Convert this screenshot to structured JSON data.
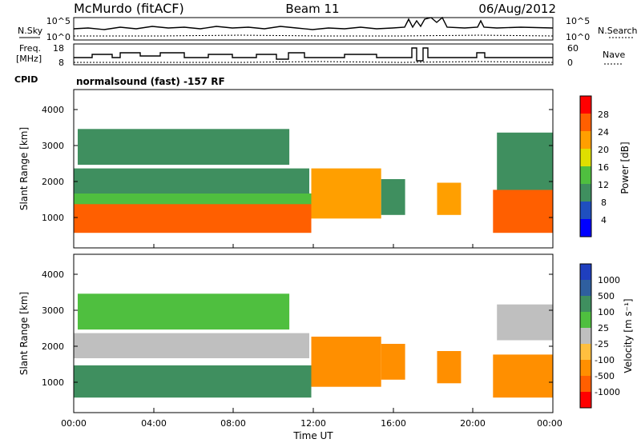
{
  "header": {
    "station": "McMurdo (fitACF)",
    "beam": "Beam 11",
    "date": "06/Aug/2012"
  },
  "top_panels": {
    "nsky_label": "N.Sky",
    "nsearch_label": "N.Search",
    "sky_ticks": [
      "10^5",
      "10^0"
    ],
    "search_ticks": [
      "10^5",
      "10^0"
    ],
    "freq_label_line1": "Freq.",
    "freq_label_line2": "[MHz]",
    "freq_ticks": [
      "18",
      "8"
    ],
    "nave_label": "Nave",
    "nave_ticks": [
      "60",
      "0"
    ],
    "cpid_label": "CPID",
    "cpid_text": "normalsound (fast) -157 RF"
  },
  "xaxis": {
    "title": "Time UT",
    "ticks": [
      "00:00",
      "04:00",
      "08:00",
      "12:00",
      "16:00",
      "20:00",
      "00:00"
    ]
  },
  "power_panel": {
    "ylabel": "Slant Range [km]",
    "yticks": [
      "1000",
      "2000",
      "3000",
      "4000"
    ],
    "colorbar_label": "Power [dB]",
    "colorbar_ticks": [
      "4",
      "8",
      "12",
      "16",
      "20",
      "24",
      "28"
    ],
    "colors": [
      "#0000ff",
      "#1f4fbf",
      "#3f8f5f",
      "#4fbf3f",
      "#dfdf00",
      "#ff9f00",
      "#ff5f00",
      "#ff0000"
    ]
  },
  "velocity_panel": {
    "ylabel": "Slant Range [km]",
    "yticks": [
      "1000",
      "2000",
      "3000",
      "4000"
    ],
    "colorbar_label": "Velocity [m s⁻¹]",
    "colorbar_ticks": [
      "-1000",
      "-500",
      "-100",
      "-25",
      "25",
      "100",
      "500",
      "1000"
    ],
    "colors": [
      "#ff0000",
      "#ff5f00",
      "#ff8f00",
      "#ffbf3f",
      "#bfbfbf",
      "#4fbf3f",
      "#3f8f5f",
      "#2f5f9f",
      "#1f3fbf"
    ]
  },
  "chart_data": [
    {
      "type": "heatmap",
      "title": "Power [dB]",
      "xlabel": "Time UT",
      "ylabel": "Slant Range [km]",
      "xlim_hours": [
        0,
        24
      ],
      "ylim_km": [
        180,
        4600
      ],
      "colorbar_range_db": [
        0,
        32
      ],
      "regions": [
        {
          "t": [
            0.0,
            11.9
          ],
          "r": [
            600,
            1500
          ],
          "value_db": 27
        },
        {
          "t": [
            0.0,
            11.9
          ],
          "r": [
            1400,
            1700
          ],
          "value_db": 14
        },
        {
          "t": [
            0.0,
            11.8
          ],
          "r": [
            1700,
            2400
          ],
          "value_db": 10
        },
        {
          "t": [
            0.2,
            10.8
          ],
          "r": [
            2500,
            3500
          ],
          "value_db": 8
        },
        {
          "t": [
            11.9,
            15.4
          ],
          "r": [
            1000,
            2400
          ],
          "value_db": 20
        },
        {
          "t": [
            15.4,
            16.6
          ],
          "r": [
            1100,
            2100
          ],
          "value_db": 10
        },
        {
          "t": [
            18.2,
            19.4
          ],
          "r": [
            1100,
            2000
          ],
          "value_db": 22
        },
        {
          "t": [
            21.0,
            24.0
          ],
          "r": [
            600,
            1800
          ],
          "value_db": 26
        },
        {
          "t": [
            21.2,
            24.0
          ],
          "r": [
            1800,
            3400
          ],
          "value_db": 9
        }
      ]
    },
    {
      "type": "heatmap",
      "title": "Velocity [m s⁻¹]",
      "xlabel": "Time UT",
      "ylabel": "Slant Range [km]",
      "xlim_hours": [
        0,
        24
      ],
      "ylim_km": [
        180,
        4600
      ],
      "colorbar_range_ms": [
        -1000,
        1000
      ],
      "regions": [
        {
          "t": [
            0.0,
            11.9
          ],
          "r": [
            600,
            1500
          ],
          "value_ms": 150
        },
        {
          "t": [
            0.0,
            11.8
          ],
          "r": [
            1700,
            2400
          ],
          "value_ms": 0
        },
        {
          "t": [
            0.2,
            10.8
          ],
          "r": [
            2500,
            3500
          ],
          "value_ms": 60
        },
        {
          "t": [
            11.9,
            15.4
          ],
          "r": [
            900,
            2300
          ],
          "value_ms": -200
        },
        {
          "t": [
            15.4,
            16.6
          ],
          "r": [
            1100,
            2100
          ],
          "value_ms": -150
        },
        {
          "t": [
            18.2,
            19.4
          ],
          "r": [
            1000,
            1900
          ],
          "value_ms": -250
        },
        {
          "t": [
            21.0,
            24.0
          ],
          "r": [
            600,
            1800
          ],
          "value_ms": -200
        },
        {
          "t": [
            21.2,
            24.0
          ],
          "r": [
            2200,
            3200
          ],
          "value_ms": 0
        }
      ]
    }
  ]
}
